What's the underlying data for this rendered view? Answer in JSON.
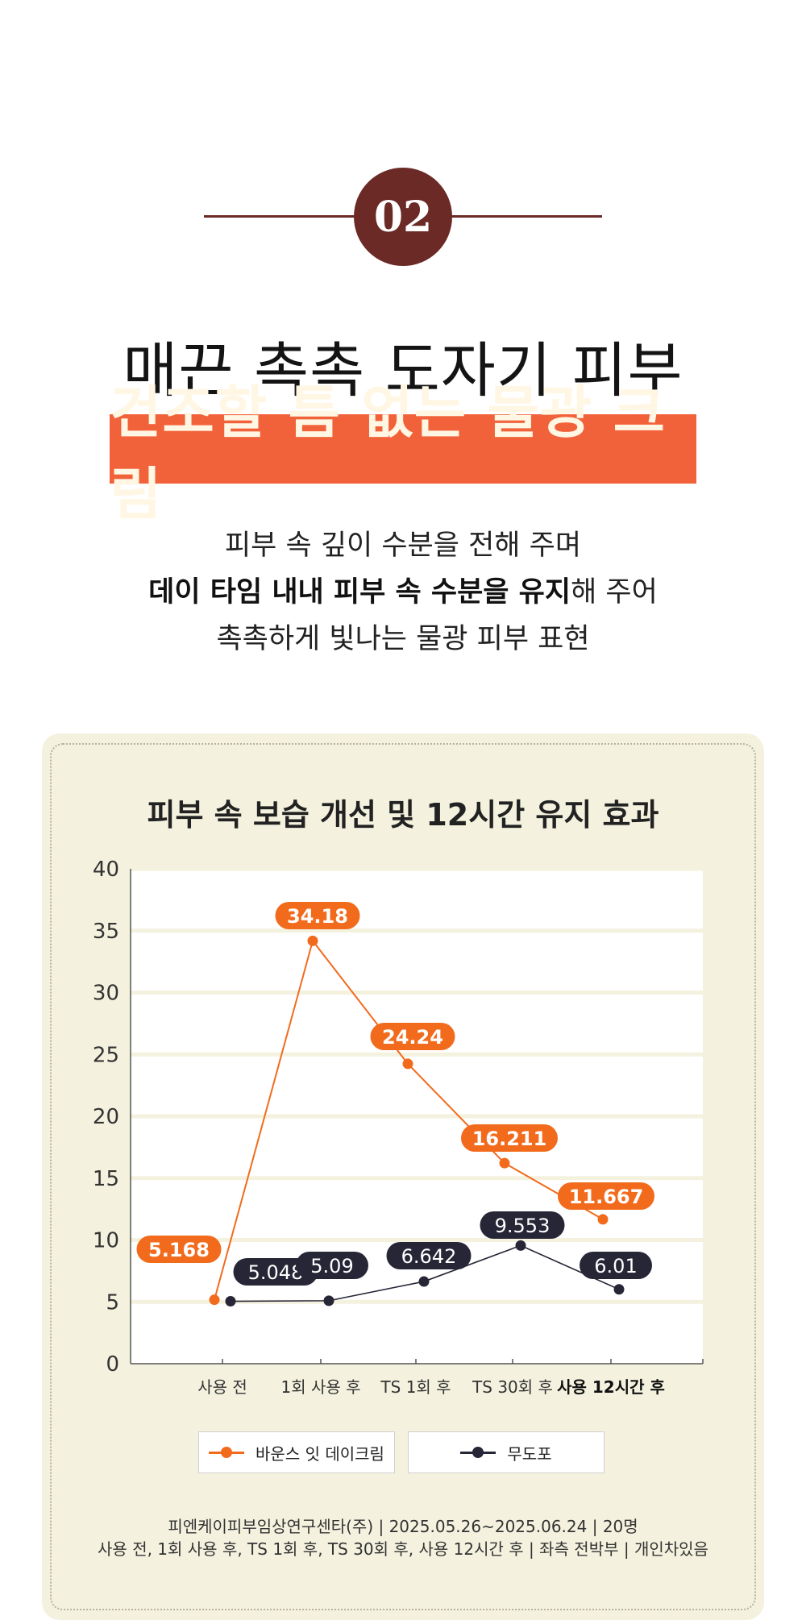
{
  "step": {
    "number": "02"
  },
  "headline": "매끈 촉촉 도자기 피부",
  "highlight": "건조할 틈 없는 물광 크림",
  "description": {
    "line1": "피부 속 깊이 수분을 전해 주며",
    "line2_bold": "데이 타임 내내 피부 속 수분을 유지",
    "line2_rest": "해 주어",
    "line3": "촉촉하게 빛나는 물광 피부 표현"
  },
  "colors": {
    "accent": "#f2623a",
    "brown": "#6b2a25",
    "orange_series": "#f26b1d",
    "navy_series": "#262637",
    "card_bg": "#f4f2df"
  },
  "chart_data": {
    "type": "line",
    "title_part1": "피부 속 보습 개선 및 ",
    "title_part2": "12시간 유지 효과",
    "categories": [
      "사용 전",
      "1회 사용 후",
      "TS 1회 후",
      "TS 30회 후",
      "사용 12시간 후"
    ],
    "series": [
      {
        "name": "바운스 잇 데이크림",
        "color": "#f26b1d",
        "values": [
          5.168,
          34.18,
          24.24,
          16.211,
          11.667
        ],
        "labels": [
          "5.168",
          "34.18",
          "24.24",
          "16.211",
          "11.667"
        ]
      },
      {
        "name": "무도포",
        "color": "#262637",
        "values": [
          5.048,
          5.09,
          6.642,
          9.553,
          6.01
        ],
        "labels": [
          "5.048",
          "5.09",
          "6.642",
          "9.553",
          "6.01"
        ]
      }
    ],
    "ylim": [
      0,
      40
    ],
    "yticks": [
      "0",
      "5",
      "10",
      "15",
      "20",
      "25",
      "30",
      "35",
      "40"
    ],
    "grid": true,
    "legend": "bottom"
  },
  "source": {
    "line1": "피엔케이피부임상연구센타(주) | 2025.05.26~2025.06.24 | 20명",
    "line2": "사용 전, 1회 사용 후, TS 1회 후, TS 30회 후, 사용 12시간 후 | 좌측 전박부 | 개인차있음"
  }
}
